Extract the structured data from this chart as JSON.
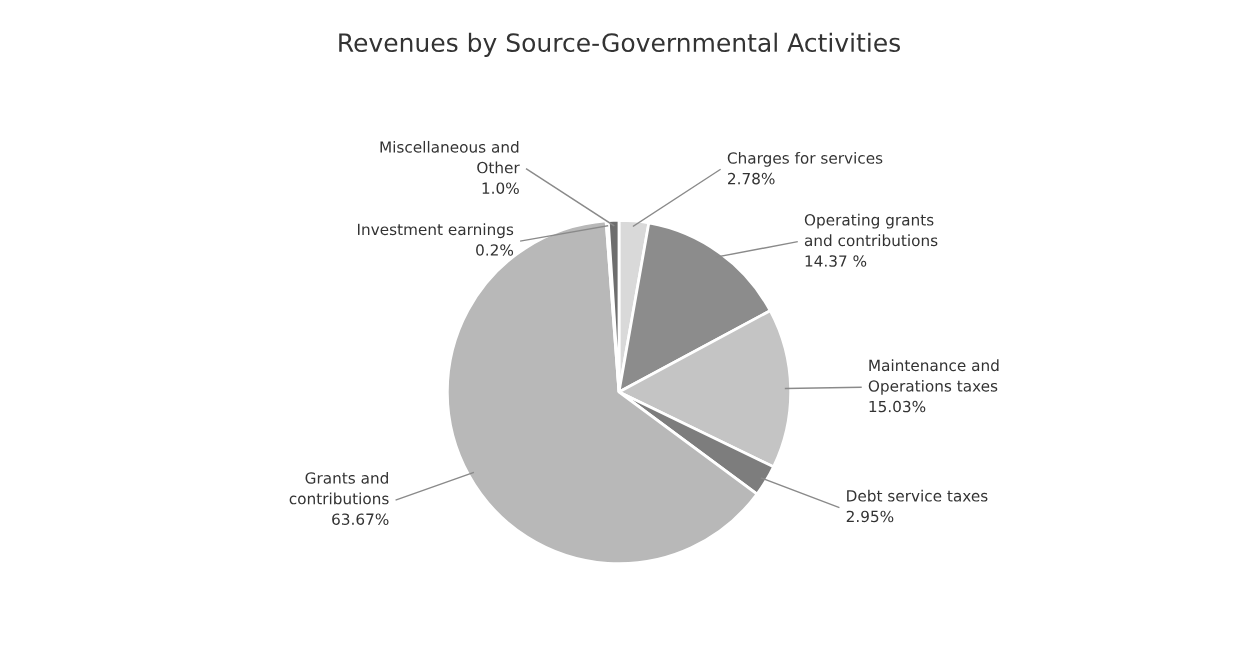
{
  "chart_data": {
    "type": "pie",
    "title": "Revenues by Source-Governmental Activities",
    "categories": [
      "Charges for services",
      "Operating grants\nand contributions",
      "Maintenance and\nOperations taxes",
      "Debt service taxes",
      "Grants and\ncontributions",
      "Investment earnings",
      "Miscellaneous and\nOther"
    ],
    "values": [
      2.78,
      14.37,
      15.03,
      2.95,
      63.67,
      0.2,
      1.0
    ],
    "value_labels": [
      "2.78%",
      "14.37 %",
      "15.03%",
      "2.95%",
      "63.67%",
      "0.2%",
      "1.0%"
    ],
    "colors": [
      "#d9d9d9",
      "#8c8c8c",
      "#c4c4c4",
      "#7d7d7d",
      "#b8b8b8",
      "#eeeeee",
      "#6e6e6e"
    ],
    "legend": false
  }
}
